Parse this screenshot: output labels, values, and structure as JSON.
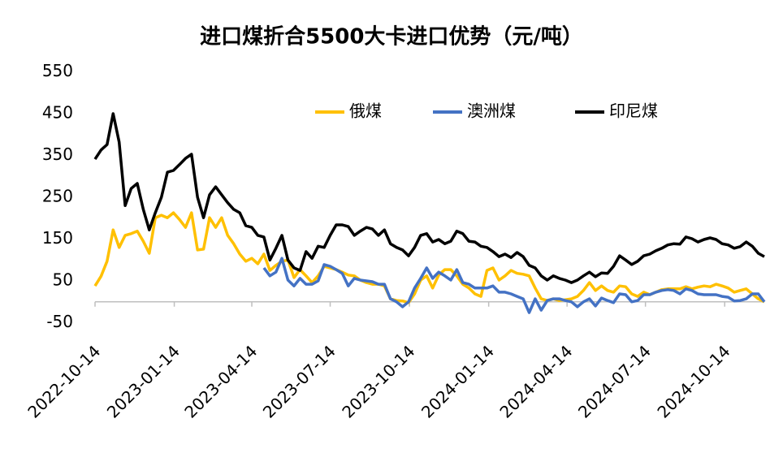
{
  "chart_data": {
    "type": "line",
    "title": "进口煤折合5500大卡进口优势（元/吨）",
    "x": [
      "2022-10-14",
      "2022-10-21",
      "2022-10-28",
      "2022-11-04",
      "2022-11-11",
      "2022-11-18",
      "2022-11-25",
      "2022-12-02",
      "2022-12-09",
      "2022-12-16",
      "2022-12-23",
      "2022-12-30",
      "2023-01-06",
      "2023-01-13",
      "2023-01-20",
      "2023-01-27",
      "2023-02-03",
      "2023-02-10",
      "2023-02-17",
      "2023-02-24",
      "2023-03-03",
      "2023-03-10",
      "2023-03-17",
      "2023-03-24",
      "2023-03-31",
      "2023-04-07",
      "2023-04-14",
      "2023-04-21",
      "2023-04-28",
      "2023-05-05",
      "2023-05-12",
      "2023-05-19",
      "2023-05-26",
      "2023-06-02",
      "2023-06-09",
      "2023-06-16",
      "2023-06-23",
      "2023-06-30",
      "2023-07-07",
      "2023-07-14",
      "2023-07-21",
      "2023-07-28",
      "2023-08-04",
      "2023-08-11",
      "2023-08-18",
      "2023-08-25",
      "2023-09-01",
      "2023-09-08",
      "2023-09-15",
      "2023-09-22",
      "2023-09-29",
      "2023-10-06",
      "2023-10-13",
      "2023-10-20",
      "2023-10-27",
      "2023-11-03",
      "2023-11-10",
      "2023-11-17",
      "2023-11-24",
      "2023-12-01",
      "2023-12-08",
      "2023-12-15",
      "2023-12-22",
      "2023-12-29",
      "2024-01-05",
      "2024-01-12",
      "2024-01-19",
      "2024-01-26",
      "2024-02-02",
      "2024-02-09",
      "2024-02-16",
      "2024-02-23",
      "2024-03-01",
      "2024-03-08",
      "2024-03-15",
      "2024-03-22",
      "2024-03-29",
      "2024-04-05",
      "2024-04-12",
      "2024-04-19",
      "2024-04-26",
      "2024-05-03",
      "2024-05-10",
      "2024-05-17",
      "2024-05-24",
      "2024-05-31",
      "2024-06-07",
      "2024-06-14",
      "2024-06-21",
      "2024-06-28",
      "2024-07-05",
      "2024-07-12",
      "2024-07-19",
      "2024-07-26",
      "2024-08-02",
      "2024-08-09",
      "2024-08-16",
      "2024-08-23",
      "2024-08-30",
      "2024-09-06",
      "2024-09-13",
      "2024-09-20",
      "2024-09-27",
      "2024-10-04",
      "2024-10-11",
      "2024-10-18",
      "2024-10-25",
      "2024-11-01",
      "2024-11-08",
      "2024-11-15",
      "2024-11-22",
      "2024-11-29"
    ],
    "series": [
      {
        "name": "俄煤",
        "color": "#FFC000",
        "values": [
          38,
          61,
          97,
          172,
          130,
          159,
          163,
          169,
          145,
          116,
          201,
          207,
          201,
          213,
          197,
          178,
          213,
          124,
          126,
          201,
          178,
          201,
          159,
          139,
          114,
          97,
          104,
          91,
          114,
          75,
          87,
          97,
          100,
          58,
          77,
          62,
          46,
          62,
          85,
          81,
          77,
          71,
          64,
          62,
          52,
          46,
          42,
          42,
          38,
          7,
          3,
          2,
          -2,
          19,
          52,
          62,
          33,
          64,
          77,
          77,
          62,
          42,
          33,
          19,
          13,
          75,
          81,
          52,
          62,
          75,
          68,
          66,
          62,
          33,
          7,
          3,
          7,
          3,
          5,
          7,
          13,
          27,
          46,
          27,
          38,
          27,
          23,
          38,
          36,
          19,
          13,
          23,
          17,
          23,
          29,
          31,
          31,
          31,
          36,
          31,
          35,
          38,
          36,
          42,
          38,
          33,
          23,
          27,
          31,
          19,
          7,
          0
        ]
      },
      {
        "name": "澳洲煤",
        "color": "#4472C4",
        "values": [
          null,
          null,
          null,
          null,
          null,
          null,
          null,
          null,
          null,
          null,
          null,
          null,
          null,
          null,
          null,
          null,
          null,
          null,
          null,
          null,
          null,
          null,
          null,
          null,
          null,
          null,
          null,
          null,
          81,
          62,
          71,
          104,
          52,
          38,
          56,
          42,
          42,
          50,
          89,
          85,
          77,
          68,
          38,
          56,
          52,
          50,
          48,
          42,
          42,
          7,
          0,
          -12,
          0,
          33,
          56,
          81,
          56,
          71,
          62,
          52,
          77,
          46,
          42,
          33,
          33,
          33,
          38,
          23,
          23,
          19,
          13,
          7,
          -26,
          7,
          -20,
          3,
          7,
          7,
          3,
          0,
          -12,
          0,
          7,
          -10,
          9,
          3,
          -2,
          19,
          17,
          0,
          3,
          17,
          17,
          23,
          27,
          29,
          27,
          19,
          31,
          27,
          19,
          17,
          17,
          17,
          13,
          11,
          2,
          3,
          7,
          19,
          19,
          0
        ]
      },
      {
        "name": "印尼煤",
        "color": "#000000",
        "values": [
          341,
          363,
          376,
          450,
          382,
          230,
          271,
          283,
          221,
          172,
          213,
          250,
          310,
          314,
          328,
          343,
          353,
          250,
          201,
          256,
          275,
          256,
          237,
          221,
          213,
          182,
          178,
          159,
          155,
          100,
          128,
          159,
          100,
          81,
          75,
          120,
          104,
          133,
          130,
          159,
          184,
          184,
          180,
          159,
          169,
          178,
          174,
          159,
          172,
          139,
          130,
          124,
          110,
          130,
          159,
          163,
          143,
          149,
          139,
          145,
          169,
          163,
          145,
          143,
          133,
          130,
          120,
          108,
          114,
          106,
          118,
          108,
          87,
          81,
          62,
          52,
          62,
          56,
          52,
          46,
          52,
          62,
          71,
          60,
          69,
          68,
          85,
          110,
          100,
          89,
          97,
          110,
          114,
          122,
          128,
          136,
          139,
          138,
          155,
          151,
          143,
          149,
          153,
          149,
          139,
          136,
          128,
          132,
          143,
          133,
          116,
          108
        ]
      }
    ],
    "xlim": [
      "2022-10-14",
      "2024-11-29"
    ],
    "xticks": [
      "2022-10-14",
      "2023-01-14",
      "2023-04-14",
      "2023-07-14",
      "2023-10-14",
      "2024-01-14",
      "2024-04-14",
      "2024-07-14",
      "2024-10-14"
    ],
    "ylim": [
      -50,
      550
    ],
    "yticks": [
      -50,
      50,
      150,
      250,
      350,
      450,
      550
    ],
    "legend": "top"
  }
}
